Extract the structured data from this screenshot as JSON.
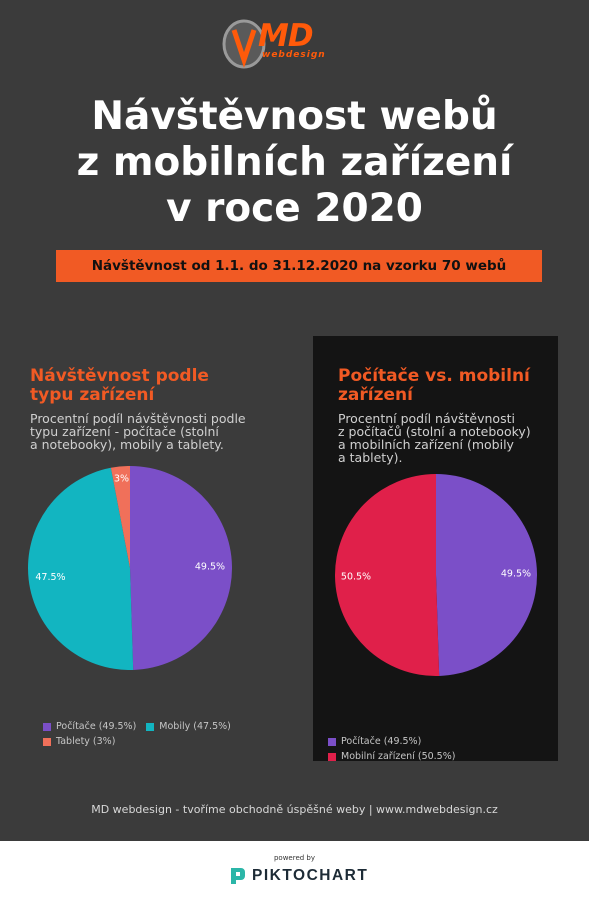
{
  "logo": {
    "brand": "MD",
    "sub": "webdesign"
  },
  "title": {
    "line1": "Návštěvnost webů",
    "line2": "z mobilních zařízení",
    "line3": "v roce 2020"
  },
  "subtitle": "Návštěvnost od 1.1. do 31.12.2020 na  vzorku 70 webů",
  "colors": {
    "background": "#3b3b3b",
    "accent": "#f15a24",
    "purple": "#7b4fc8",
    "teal": "#12b5c1",
    "salmon": "#f0705a",
    "crimson": "#e0204a"
  },
  "left_panel": {
    "title1": "Návštěvnost podle",
    "title2": "typu zařízení",
    "desc1": "Procentní podíl návštěvnosti podle",
    "desc2": "typu zařízení - počítače (stolní",
    "desc3": "a notebooky), mobily a tablety."
  },
  "right_panel": {
    "title1": "Počítače vs. mobilní",
    "title2": "zařízení",
    "desc1": "Procentní podíl návštěvnosti",
    "desc2": "z počítačů (stolní a notebooky)",
    "desc3": "a mobilních zařízení (mobily",
    "desc4": "a tablety)."
  },
  "chart_data": [
    {
      "type": "pie",
      "labels": [
        "Počítače",
        "Mobily",
        "Tablety"
      ],
      "values": [
        49.5,
        47.5,
        3
      ],
      "data_labels": [
        "49.5%",
        "47.5%",
        "3%"
      ],
      "legend": [
        "Počítače (49.5%)",
        "Mobily (47.5%)",
        "Tablety (3%)"
      ],
      "colors": [
        "#7b4fc8",
        "#12b5c1",
        "#f0705a"
      ],
      "legend_position": "bottom-left"
    },
    {
      "type": "pie",
      "labels": [
        "Počítače",
        "Mobilní zařízení"
      ],
      "values": [
        49.5,
        50.5
      ],
      "data_labels": [
        "49.5%",
        "50.5%"
      ],
      "legend": [
        "Počítače (49.5%)",
        "Mobilní zařízení (50.5%)"
      ],
      "colors": [
        "#7b4fc8",
        "#e0204a"
      ],
      "legend_position": "bottom-left"
    }
  ],
  "footer": "MD webdesign - tvoříme obchodně úspěšné weby | www.mdwebdesign.cz",
  "powered": {
    "by": "powered by",
    "brand": "PIKTOCHART"
  }
}
